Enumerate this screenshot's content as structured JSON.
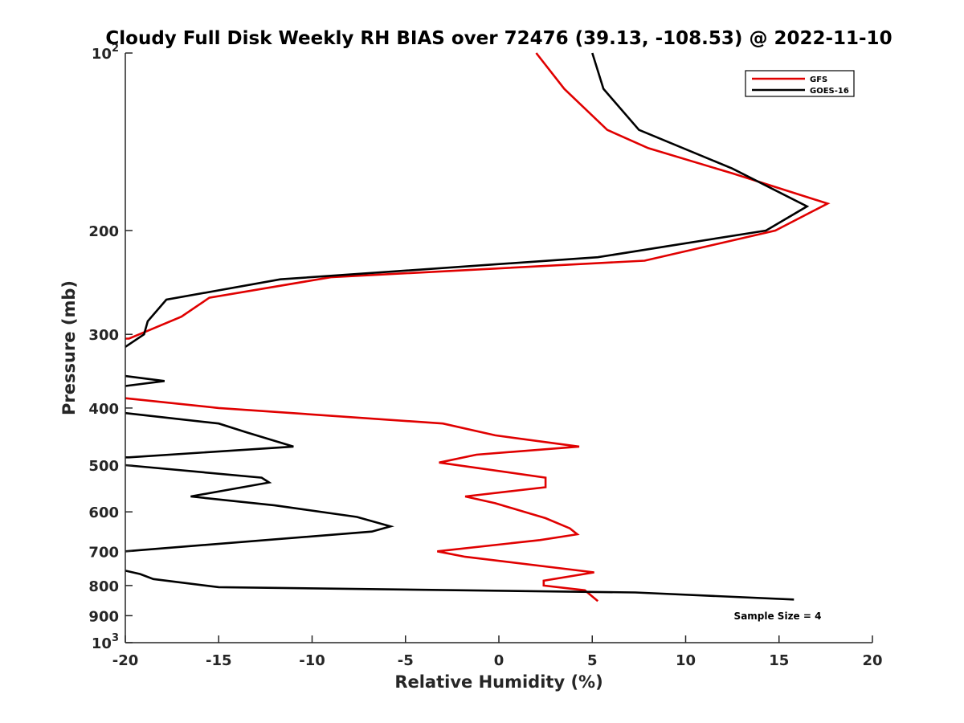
{
  "chart_data": {
    "type": "line",
    "title": "Cloudy Full Disk Weekly RH BIAS over 72476 (39.13, -108.53) @ 2022-11-10",
    "xlabel": "Relative Humidity (%)",
    "ylabel": "Pressure (mb)",
    "xlim": [
      -20,
      20
    ],
    "ylim": [
      100,
      1000
    ],
    "y_scale": "log",
    "y_reversed": true,
    "x_ticks": [
      "-20",
      "-15",
      "-10",
      "-5",
      "0",
      "5",
      "10",
      "15",
      "20"
    ],
    "y_ticks": [
      {
        "value": 100,
        "base": "10",
        "exp": "2"
      },
      {
        "value": 200,
        "base": "200",
        "exp": ""
      },
      {
        "value": 300,
        "base": "300",
        "exp": ""
      },
      {
        "value": 400,
        "base": "400",
        "exp": ""
      },
      {
        "value": 500,
        "base": "500",
        "exp": ""
      },
      {
        "value": 600,
        "base": "600",
        "exp": ""
      },
      {
        "value": 700,
        "base": "700",
        "exp": ""
      },
      {
        "value": 800,
        "base": "800",
        "exp": ""
      },
      {
        "value": 900,
        "base": "900",
        "exp": ""
      },
      {
        "value": 1000,
        "base": "10",
        "exp": "3"
      }
    ],
    "legend_position": "top-right",
    "grid": false,
    "series": [
      {
        "name": "GFS",
        "color": "#e00000",
        "segments": [
          [
            [
              2.0,
              100
            ],
            [
              3.5,
              115
            ],
            [
              5.8,
              135
            ],
            [
              8.0,
              145
            ],
            [
              12.5,
              160
            ],
            [
              17.6,
              180
            ],
            [
              14.8,
              200
            ],
            [
              7.8,
              225
            ],
            [
              -9.0,
              240
            ],
            [
              -15.5,
              260
            ],
            [
              -17.0,
              280
            ],
            [
              -18.7,
              295
            ],
            [
              -19.8,
              305
            ],
            [
              -20.0,
              305
            ]
          ],
          [
            [
              -20.0,
              385
            ],
            [
              -15.0,
              400
            ],
            [
              -3.0,
              425
            ],
            [
              -0.2,
              445
            ],
            [
              4.3,
              465
            ],
            [
              -1.2,
              480
            ],
            [
              -3.2,
              495
            ],
            [
              2.5,
              525
            ],
            [
              2.5,
              545
            ],
            [
              -1.8,
              565
            ],
            [
              -0.2,
              580
            ],
            [
              2.5,
              615
            ],
            [
              3.8,
              640
            ],
            [
              4.2,
              655
            ],
            [
              2.2,
              670
            ],
            [
              -3.3,
              700
            ],
            [
              -1.8,
              715
            ],
            [
              5.1,
              760
            ],
            [
              2.4,
              785
            ],
            [
              2.4,
              800
            ],
            [
              4.6,
              815
            ],
            [
              5.3,
              850
            ]
          ]
        ]
      },
      {
        "name": "GOES-16",
        "color": "#000000",
        "segments": [
          [
            [
              5.0,
              100
            ],
            [
              5.6,
              115
            ],
            [
              7.5,
              135
            ],
            [
              12.5,
              157
            ],
            [
              16.5,
              182
            ],
            [
              14.3,
              200
            ],
            [
              5.3,
              222
            ],
            [
              -11.7,
              242
            ],
            [
              -17.8,
              262
            ],
            [
              -18.8,
              285
            ],
            [
              -19.0,
              300
            ],
            [
              -20.0,
              315
            ]
          ],
          [
            [
              -20.0,
              353
            ],
            [
              -17.9,
              360
            ],
            [
              -20.0,
              367
            ]
          ],
          [
            [
              -20.0,
              408
            ],
            [
              -15.0,
              425
            ],
            [
              -13.5,
              440
            ],
            [
              -11.0,
              465
            ],
            [
              -19.8,
              485
            ],
            [
              -20.0,
              485
            ]
          ],
          [
            [
              -20.0,
              500
            ],
            [
              -12.7,
              525
            ],
            [
              -12.3,
              535
            ],
            [
              -16.5,
              565
            ],
            [
              -12.0,
              585
            ],
            [
              -7.6,
              612
            ],
            [
              -5.8,
              635
            ],
            [
              -6.8,
              648
            ],
            [
              -20.0,
              700
            ]
          ],
          [
            [
              -20.0,
              755
            ],
            [
              -19.2,
              765
            ],
            [
              -18.5,
              780
            ],
            [
              -15.0,
              805
            ],
            [
              7.3,
              822
            ],
            [
              15.8,
              845
            ]
          ]
        ]
      }
    ],
    "legend": [
      {
        "label": "GFS",
        "color": "#e00000"
      },
      {
        "label": "GOES-16",
        "color": "#000000"
      }
    ],
    "annotation": "Sample Size = 4"
  }
}
